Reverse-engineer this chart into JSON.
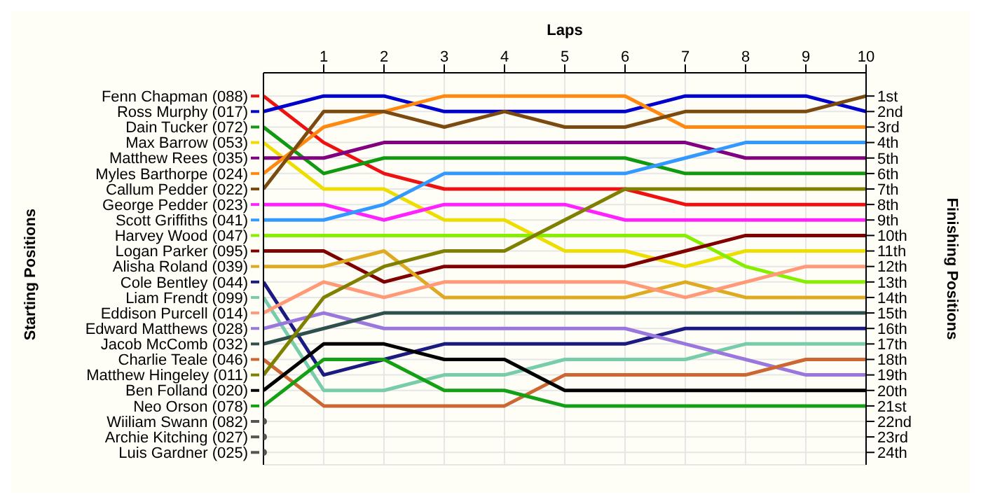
{
  "chart_data": {
    "type": "line",
    "xlabel": "Laps",
    "ylabel": "Finishing Positions",
    "legend": "left",
    "annotations": [
      "Starting Positions"
    ],
    "x": [
      0,
      1,
      2,
      3,
      4,
      5,
      6,
      7,
      8,
      9,
      10
    ],
    "xlim": [
      0,
      10
    ],
    "xticks": [
      1,
      2,
      3,
      4,
      5,
      6,
      7,
      8,
      9,
      10
    ],
    "ylim": [
      24.8,
      -0.5
    ],
    "yticks": [
      {
        "value": 1,
        "label": "1st"
      },
      {
        "value": 2,
        "label": "2nd"
      },
      {
        "value": 3,
        "label": "3rd"
      },
      {
        "value": 4,
        "label": "4th"
      },
      {
        "value": 5,
        "label": "5th"
      },
      {
        "value": 6,
        "label": "6th"
      },
      {
        "value": 7,
        "label": "7th"
      },
      {
        "value": 8,
        "label": "8th"
      },
      {
        "value": 9,
        "label": "9th"
      },
      {
        "value": 10,
        "label": "10th"
      },
      {
        "value": 11,
        "label": "11th"
      },
      {
        "value": 12,
        "label": "12th"
      },
      {
        "value": 13,
        "label": "13th"
      },
      {
        "value": 14,
        "label": "14th"
      },
      {
        "value": 15,
        "label": "15th"
      },
      {
        "value": 16,
        "label": "16th"
      },
      {
        "value": 17,
        "label": "17th"
      },
      {
        "value": 18,
        "label": "18th"
      },
      {
        "value": 19,
        "label": "19th"
      },
      {
        "value": 20,
        "label": "20th"
      },
      {
        "value": 21,
        "label": "21st"
      },
      {
        "value": 22,
        "label": "22nd"
      },
      {
        "value": 23,
        "label": "23rd"
      },
      {
        "value": 24,
        "label": "24th"
      }
    ],
    "grid": true,
    "series": [
      {
        "name": "Fenn Chapman (088)",
        "color": "#ee1111",
        "values": [
          1,
          4,
          6,
          7,
          7,
          7,
          7,
          8,
          8,
          8,
          8
        ]
      },
      {
        "name": "Ross Murphy (017)",
        "color": "#0000cc",
        "values": [
          2,
          1,
          1,
          2,
          2,
          2,
          2,
          1,
          1,
          1,
          2
        ]
      },
      {
        "name": "Dain Tucker (072)",
        "color": "#119911",
        "values": [
          3,
          6,
          5,
          5,
          5,
          5,
          5,
          6,
          6,
          6,
          6
        ]
      },
      {
        "name": "Max Barrow (053)",
        "color": "#eedd00",
        "values": [
          4,
          7,
          7,
          9,
          9,
          11,
          11,
          12,
          11,
          11,
          11
        ]
      },
      {
        "name": "Matthew Rees (035)",
        "color": "#800080",
        "values": [
          5,
          5,
          4,
          4,
          4,
          4,
          4,
          4,
          5,
          5,
          5
        ]
      },
      {
        "name": "Myles Barthorpe (024)",
        "color": "#ff8811",
        "values": [
          6,
          3,
          2,
          1,
          1,
          1,
          1,
          3,
          3,
          3,
          3
        ]
      },
      {
        "name": "Callum Pedder (022)",
        "color": "#7a4a10",
        "values": [
          7,
          2,
          2,
          3,
          2,
          3,
          3,
          2,
          2,
          2,
          1
        ]
      },
      {
        "name": "George Pedder (023)",
        "color": "#ff22ff",
        "values": [
          8,
          8,
          9,
          8,
          8,
          8,
          9,
          9,
          9,
          9,
          9
        ]
      },
      {
        "name": "Scott Griffiths (041)",
        "color": "#3399ff",
        "values": [
          9,
          9,
          8,
          6,
          6,
          6,
          6,
          5,
          4,
          4,
          4
        ]
      },
      {
        "name": "Harvey Wood (047)",
        "color": "#88ee00",
        "values": [
          10,
          10,
          10,
          10,
          10,
          10,
          10,
          10,
          12,
          13,
          13
        ]
      },
      {
        "name": "Logan Parker (095)",
        "color": "#800000",
        "values": [
          11,
          11,
          13,
          12,
          12,
          12,
          12,
          11,
          10,
          10,
          10
        ]
      },
      {
        "name": "Alisha Roland (039)",
        "color": "#ddaa22",
        "values": [
          12,
          12,
          11,
          14,
          14,
          14,
          14,
          13,
          14,
          14,
          14
        ]
      },
      {
        "name": "Cole Bentley (044)",
        "color": "#1a1a80",
        "values": [
          13,
          19,
          18,
          17,
          17,
          17,
          17,
          16,
          16,
          16,
          16
        ]
      },
      {
        "name": "Liam Frendt (099)",
        "color": "#77ccaa",
        "values": [
          14,
          20,
          20,
          19,
          19,
          18,
          18,
          18,
          17,
          17,
          17
        ]
      },
      {
        "name": "Eddison Purcell (014)",
        "color": "#ff9977",
        "values": [
          15,
          13,
          14,
          13,
          13,
          13,
          13,
          14,
          13,
          12,
          12
        ]
      },
      {
        "name": "Edward Matthews (028)",
        "color": "#9977dd",
        "values": [
          16,
          15,
          16,
          16,
          16,
          16,
          16,
          17,
          18,
          19,
          19
        ]
      },
      {
        "name": "Jacob McComb (032)",
        "color": "#2f4f4f",
        "values": [
          17,
          16,
          15,
          15,
          15,
          15,
          15,
          15,
          15,
          15,
          15
        ]
      },
      {
        "name": "Charlie Teale (046)",
        "color": "#cc6633",
        "values": [
          18,
          21,
          21,
          21,
          21,
          19,
          19,
          19,
          19,
          18,
          18
        ]
      },
      {
        "name": "Matthew Hingeley (011)",
        "color": "#808000",
        "values": [
          19,
          14,
          12,
          11,
          11,
          9,
          7,
          7,
          7,
          7,
          7
        ]
      },
      {
        "name": "Ben Folland (020)",
        "color": "#000000",
        "values": [
          20,
          17,
          17,
          18,
          18,
          20,
          20,
          20,
          20,
          20,
          20
        ]
      },
      {
        "name": "Neo Orson (078)",
        "color": "#14a014",
        "values": [
          21,
          18,
          18,
          20,
          20,
          21,
          21,
          21,
          21,
          21,
          21
        ]
      },
      {
        "name": "Wiiliam Swann (082)",
        "color": "#555555",
        "marker": "circle",
        "values": [
          22,
          null,
          null,
          null,
          null,
          null,
          null,
          null,
          null,
          null,
          null
        ]
      },
      {
        "name": "Archie Kitching (027)",
        "color": "#555555",
        "marker": "circle",
        "values": [
          23,
          null,
          null,
          null,
          null,
          null,
          null,
          null,
          null,
          null,
          null
        ]
      },
      {
        "name": "Luis Gardner (025)",
        "color": "#555555",
        "marker": "circle",
        "values": [
          24,
          null,
          null,
          null,
          null,
          null,
          null,
          null,
          null,
          null,
          null
        ]
      }
    ]
  }
}
